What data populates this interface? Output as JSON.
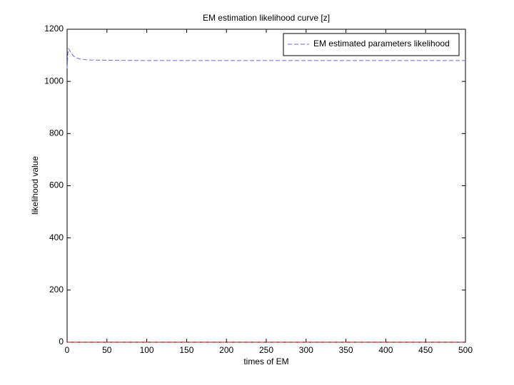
{
  "chart_data": {
    "type": "line",
    "title": "EM estimation likelihood curve [z]",
    "xlabel": "times of EM",
    "ylabel": "likelihood value",
    "x": [
      0,
      1,
      2,
      3,
      5,
      8,
      12,
      16,
      20,
      30,
      50,
      100,
      200,
      300,
      400,
      500
    ],
    "series": [
      {
        "name": "EM estimated parameters likelihood",
        "color": "#6666dd",
        "values": [
          1050,
          1110,
          1125,
          1120,
          1108,
          1097,
          1090,
          1086,
          1084,
          1082,
          1081,
          1080,
          1080,
          1080,
          1080,
          1080
        ]
      },
      {
        "color": "#cc0000",
        "values": [
          0,
          0,
          0,
          0,
          0,
          0,
          0,
          0,
          0,
          0,
          0,
          0,
          0,
          0,
          0,
          0
        ]
      }
    ],
    "xlim": [
      0,
      500
    ],
    "xticks": [
      0,
      50,
      100,
      150,
      200,
      250,
      300,
      350,
      400,
      450,
      500
    ],
    "ylim": [
      0,
      1200
    ],
    "yticks": [
      0,
      200,
      400,
      600,
      800,
      1000,
      1200
    ],
    "legend": "upper right",
    "grid": false
  }
}
